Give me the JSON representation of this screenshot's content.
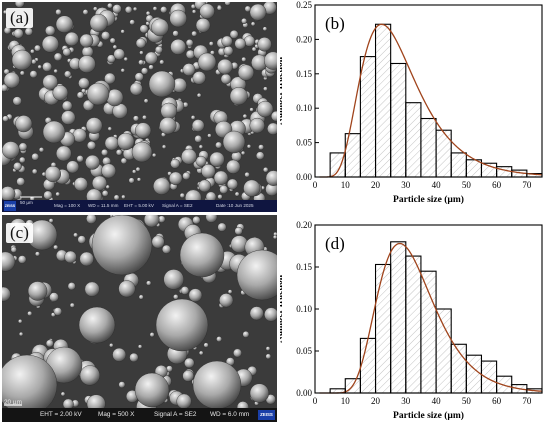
{
  "panels": {
    "a": {
      "tag": "(a)"
    },
    "b": {
      "tag": "(b)"
    },
    "c": {
      "tag": "(c)"
    },
    "d": {
      "tag": "(d)"
    }
  },
  "sem_a": {
    "scale_bar": "50 µm",
    "mag": "Mag =  100 X",
    "wd": "WD = 11.5 mm",
    "eht": "EHT =  5.00 kV",
    "signal": "Signal A =  SE2",
    "date": "Date :10 Jun 2025",
    "brand": "ZEISS"
  },
  "sem_c": {
    "scale_bar": "20 µm",
    "eht": "EHT = 2.00 kV",
    "mag": "Mag =   500 X",
    "signal": "Signal A = SE2",
    "wd": "WD = 6.0 mm",
    "brand": "ZEISS"
  },
  "colors": {
    "bar_edge": "#000000",
    "hatch": "#9a9a9a",
    "fit_curve": "#a0441c"
  },
  "chart_data": [
    {
      "panel": "b",
      "type": "bar",
      "xlabel": "Particle size (µm)",
      "ylabel": "Number fraction",
      "xlim": [
        0,
        75
      ],
      "ylim": [
        0,
        0.25
      ],
      "xticks": [
        0,
        10,
        20,
        30,
        40,
        50,
        60,
        70
      ],
      "yticks": [
        0.0,
        0.05,
        0.1,
        0.15,
        0.2,
        0.25
      ],
      "ytick_labels": [
        "0.00",
        "0.05",
        "0.10",
        "0.15",
        "0.20",
        "0.25"
      ],
      "bin_width": 5,
      "bin_starts": [
        5,
        10,
        15,
        20,
        25,
        30,
        35,
        40,
        45,
        50,
        55,
        60,
        65,
        70
      ],
      "values": [
        0.035,
        0.063,
        0.175,
        0.222,
        0.165,
        0.108,
        0.085,
        0.068,
        0.035,
        0.025,
        0.02,
        0.015,
        0.01,
        0.005
      ],
      "fit_curve": {
        "type": "lognormal",
        "mode": 22,
        "peak": 0.222,
        "sigma": 0.42
      }
    },
    {
      "panel": "d",
      "type": "bar",
      "xlabel": "Particle size (µm)",
      "ylabel": "Number fraction",
      "xlim": [
        0,
        75
      ],
      "ylim": [
        0,
        0.2
      ],
      "xticks": [
        0,
        10,
        20,
        30,
        40,
        50,
        60,
        70
      ],
      "yticks": [
        0.0,
        0.05,
        0.1,
        0.15,
        0.2
      ],
      "ytick_labels": [
        "0.00",
        "0.05",
        "0.10",
        "0.15",
        "0.20"
      ],
      "bin_width": 5,
      "bin_starts": [
        5,
        10,
        15,
        20,
        25,
        30,
        35,
        40,
        45,
        50,
        55,
        60,
        65,
        70
      ],
      "values": [
        0.005,
        0.017,
        0.065,
        0.153,
        0.18,
        0.163,
        0.145,
        0.1,
        0.058,
        0.045,
        0.038,
        0.02,
        0.01,
        0.005
      ],
      "fit_curve": {
        "type": "lognormal",
        "mode": 28,
        "peak": 0.178,
        "sigma": 0.33
      }
    }
  ]
}
